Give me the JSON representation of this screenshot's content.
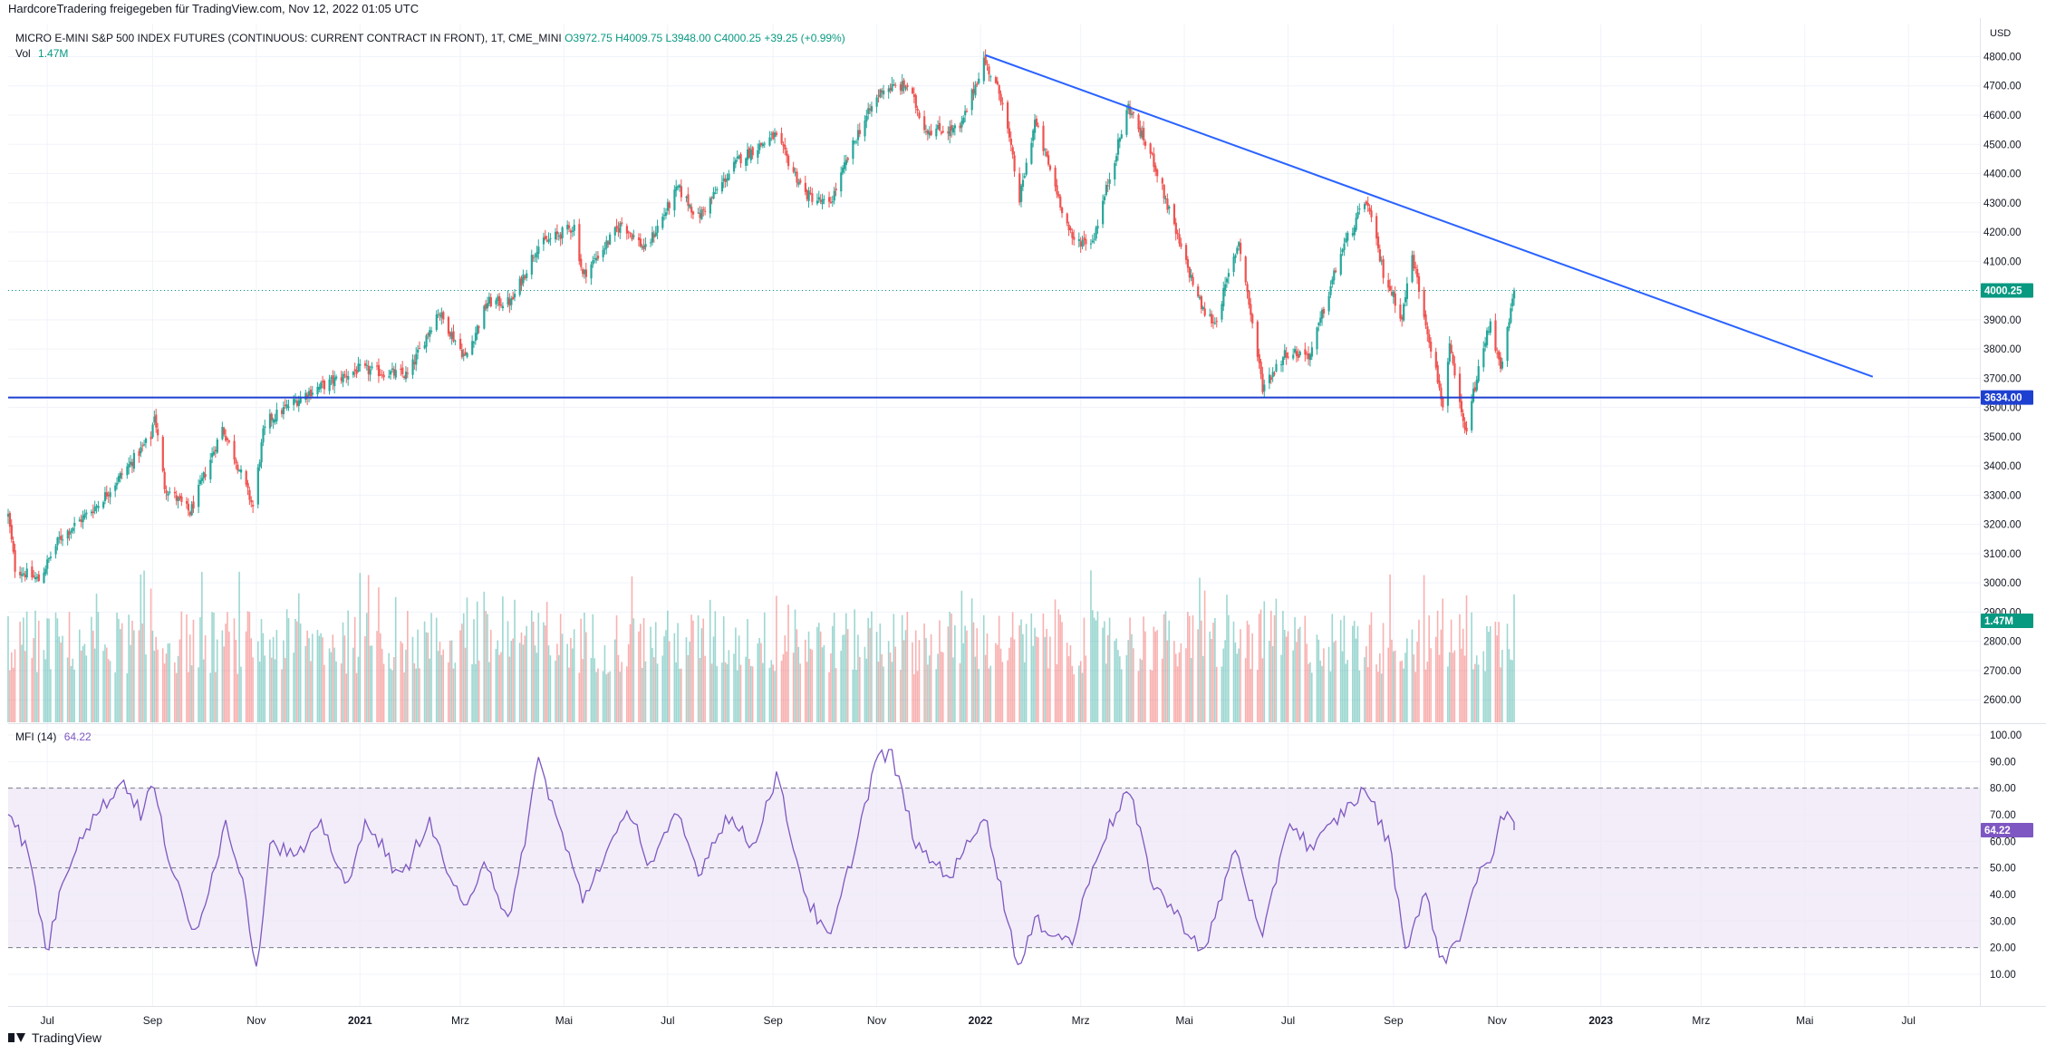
{
  "header": {
    "shared_by": "HardcoreTradering freigegeben für TradingView.com, Nov 12, 2022 01:05 UTC"
  },
  "legend": {
    "symbol": "MICRO E-MINI S&P 500 INDEX FUTURES (CONTINUOUS: CURRENT CONTRACT IN FRONT), 1T, CME_MINI",
    "open": "O3972.75",
    "high": "H4009.75",
    "low": "L3948.00",
    "close": "C4000.25",
    "change": "+39.25 (+0.99%)",
    "vol_label": "Vol",
    "vol_value": "1.47M",
    "mfi_label": "MFI (14)",
    "mfi_value": "64.22"
  },
  "footer": {
    "brand": "TradingView"
  },
  "colors": {
    "up": "#26a69a",
    "down": "#ef5350",
    "trendline": "#2962ff",
    "support": "#1e40d0",
    "mfi_line": "#7e57c2",
    "mfi_band": "#ede7f6",
    "last_price": "#089981",
    "support_label": "#1e40d0"
  },
  "chart_data": [
    {
      "type": "candlestick",
      "currency": "USD",
      "y_axis_label": "USD",
      "ylim": [
        2520,
        4910
      ],
      "y_ticks": [
        2600,
        2700,
        2800,
        2900,
        3000,
        3100,
        3200,
        3300,
        3400,
        3500,
        3600,
        3700,
        3800,
        3900,
        4000,
        4100,
        4200,
        4300,
        4400,
        4500,
        4600,
        4700,
        4800
      ],
      "x_range": [
        "2020-06-08",
        "2023-08-12"
      ],
      "x_ticks": [
        {
          "date": "2020-07-01",
          "label": "Jul",
          "bold": false
        },
        {
          "date": "2020-09-01",
          "label": "Sep",
          "bold": false
        },
        {
          "date": "2020-11-01",
          "label": "Nov",
          "bold": false
        },
        {
          "date": "2021-01-01",
          "label": "2021",
          "bold": true
        },
        {
          "date": "2021-03-01",
          "label": "Mrz",
          "bold": false
        },
        {
          "date": "2021-05-01",
          "label": "Mai",
          "bold": false
        },
        {
          "date": "2021-07-01",
          "label": "Jul",
          "bold": false
        },
        {
          "date": "2021-09-01",
          "label": "Sep",
          "bold": false
        },
        {
          "date": "2021-11-01",
          "label": "Nov",
          "bold": false
        },
        {
          "date": "2022-01-01",
          "label": "2022",
          "bold": true
        },
        {
          "date": "2022-03-01",
          "label": "Mrz",
          "bold": false
        },
        {
          "date": "2022-05-01",
          "label": "Mai",
          "bold": false
        },
        {
          "date": "2022-07-01",
          "label": "Jul",
          "bold": false
        },
        {
          "date": "2022-09-01",
          "label": "Sep",
          "bold": false
        },
        {
          "date": "2022-11-01",
          "label": "Nov",
          "bold": false
        },
        {
          "date": "2023-01-01",
          "label": "2023",
          "bold": true
        },
        {
          "date": "2023-03-01",
          "label": "Mrz",
          "bold": false
        },
        {
          "date": "2023-05-01",
          "label": "Mai",
          "bold": false
        },
        {
          "date": "2023-07-01",
          "label": "Jul",
          "bold": false
        }
      ],
      "series_close_path": [
        [
          "2020-06-08",
          3230
        ],
        [
          "2020-06-12",
          3050
        ],
        [
          "2020-06-26",
          3010
        ],
        [
          "2020-07-08",
          3150
        ],
        [
          "2020-07-31",
          3270
        ],
        [
          "2020-08-15",
          3380
        ],
        [
          "2020-08-31",
          3500
        ],
        [
          "2020-09-02",
          3580
        ],
        [
          "2020-09-08",
          3330
        ],
        [
          "2020-09-23",
          3240
        ],
        [
          "2020-10-12",
          3530
        ],
        [
          "2020-10-20",
          3420
        ],
        [
          "2020-10-30",
          3260
        ],
        [
          "2020-11-05",
          3510
        ],
        [
          "2020-11-09",
          3560
        ],
        [
          "2020-12-01",
          3650
        ],
        [
          "2020-12-31",
          3730
        ],
        [
          "2021-01-29",
          3710
        ],
        [
          "2021-02-16",
          3930
        ],
        [
          "2021-03-04",
          3770
        ],
        [
          "2021-03-17",
          3960
        ],
        [
          "2021-03-31",
          3960
        ],
        [
          "2021-04-15",
          4150
        ],
        [
          "2021-05-07",
          4220
        ],
        [
          "2021-05-12",
          4050
        ],
        [
          "2021-06-04",
          4230
        ],
        [
          "2021-06-18",
          4140
        ],
        [
          "2021-07-07",
          4350
        ],
        [
          "2021-07-19",
          4250
        ],
        [
          "2021-08-12",
          4450
        ],
        [
          "2021-09-02",
          4530
        ],
        [
          "2021-09-20",
          4330
        ],
        [
          "2021-10-04",
          4290
        ],
        [
          "2021-10-21",
          4540
        ],
        [
          "2021-11-04",
          4690
        ],
        [
          "2021-11-19",
          4700
        ],
        [
          "2021-11-30",
          4550
        ],
        [
          "2021-12-20",
          4550
        ],
        [
          "2022-01-03",
          4790
        ],
        [
          "2022-01-14",
          4650
        ],
        [
          "2022-01-24",
          4310
        ],
        [
          "2022-02-02",
          4580
        ],
        [
          "2022-02-24",
          4170
        ],
        [
          "2022-03-08",
          4170
        ],
        [
          "2022-03-29",
          4630
        ],
        [
          "2022-04-13",
          4440
        ],
        [
          "2022-04-29",
          4140
        ],
        [
          "2022-05-12",
          3930
        ],
        [
          "2022-05-19",
          3890
        ],
        [
          "2022-06-02",
          4170
        ],
        [
          "2022-06-16",
          3670
        ],
        [
          "2022-06-30",
          3790
        ],
        [
          "2022-07-14",
          3780
        ],
        [
          "2022-08-01",
          4130
        ],
        [
          "2022-08-16",
          4310
        ],
        [
          "2022-08-26",
          4060
        ],
        [
          "2022-09-06",
          3910
        ],
        [
          "2022-09-12",
          4120
        ],
        [
          "2022-09-30",
          3610
        ],
        [
          "2022-10-04",
          3800
        ],
        [
          "2022-10-13",
          3510
        ],
        [
          "2022-10-20",
          3700
        ],
        [
          "2022-10-28",
          3900
        ],
        [
          "2022-11-03",
          3720
        ],
        [
          "2022-11-10",
          3960
        ],
        [
          "2022-11-11",
          4000.25
        ]
      ],
      "last_price": 4000.25,
      "last_price_label": "4000.25",
      "support_level": 3634.0,
      "support_label": "3634.00",
      "trendline": {
        "start": [
          "2022-01-04",
          4805
        ],
        "end": [
          "2023-06-10",
          3705
        ]
      },
      "volume": {
        "last_value": "1.47M",
        "scale_max_m": 2.0
      }
    },
    {
      "type": "line",
      "name": "MFI (14)",
      "ylim": [
        0,
        100
      ],
      "y_ticks": [
        10,
        20,
        30,
        40,
        50,
        60,
        70,
        80,
        90,
        100
      ],
      "bands": {
        "upper": 80,
        "middle": 50,
        "lower": 20
      },
      "last_value": 64.22,
      "last_label": "64.22",
      "series": [
        [
          "2020-06-08",
          73
        ],
        [
          "2020-06-20",
          55
        ],
        [
          "2020-07-01",
          18
        ],
        [
          "2020-07-10",
          45
        ],
        [
          "2020-07-20",
          62
        ],
        [
          "2020-08-05",
          75
        ],
        [
          "2020-08-15",
          83
        ],
        [
          "2020-08-25",
          70
        ],
        [
          "2020-09-01",
          82
        ],
        [
          "2020-09-10",
          55
        ],
        [
          "2020-09-25",
          24
        ],
        [
          "2020-10-05",
          45
        ],
        [
          "2020-10-14",
          67
        ],
        [
          "2020-10-25",
          44
        ],
        [
          "2020-11-01",
          10
        ],
        [
          "2020-11-09",
          60
        ],
        [
          "2020-11-25",
          54
        ],
        [
          "2020-12-10",
          66
        ],
        [
          "2020-12-25",
          42
        ],
        [
          "2021-01-05",
          69
        ],
        [
          "2021-01-25",
          45
        ],
        [
          "2021-02-10",
          68
        ],
        [
          "2021-03-04",
          32
        ],
        [
          "2021-03-15",
          55
        ],
        [
          "2021-03-30",
          28
        ],
        [
          "2021-04-16",
          91
        ],
        [
          "2021-04-26",
          70
        ],
        [
          "2021-05-12",
          38
        ],
        [
          "2021-05-25",
          55
        ],
        [
          "2021-06-10",
          72
        ],
        [
          "2021-06-20",
          50
        ],
        [
          "2021-07-07",
          70
        ],
        [
          "2021-07-19",
          48
        ],
        [
          "2021-08-05",
          70
        ],
        [
          "2021-08-20",
          58
        ],
        [
          "2021-09-03",
          85
        ],
        [
          "2021-09-20",
          40
        ],
        [
          "2021-10-04",
          22
        ],
        [
          "2021-10-20",
          60
        ],
        [
          "2021-11-01",
          92
        ],
        [
          "2021-11-10",
          92
        ],
        [
          "2021-11-25",
          57
        ],
        [
          "2021-12-15",
          47
        ],
        [
          "2022-01-03",
          71
        ],
        [
          "2022-01-24",
          11
        ],
        [
          "2022-02-02",
          30
        ],
        [
          "2022-02-24",
          22
        ],
        [
          "2022-03-10",
          55
        ],
        [
          "2022-03-29",
          80
        ],
        [
          "2022-04-12",
          45
        ],
        [
          "2022-04-29",
          30
        ],
        [
          "2022-05-13",
          18
        ],
        [
          "2022-05-31",
          58
        ],
        [
          "2022-06-16",
          22
        ],
        [
          "2022-07-01",
          68
        ],
        [
          "2022-07-15",
          57
        ],
        [
          "2022-08-01",
          70
        ],
        [
          "2022-08-16",
          80
        ],
        [
          "2022-08-30",
          58
        ],
        [
          "2022-09-08",
          20
        ],
        [
          "2022-09-20",
          40
        ],
        [
          "2022-09-30",
          14
        ],
        [
          "2022-10-10",
          25
        ],
        [
          "2022-10-20",
          45
        ],
        [
          "2022-10-29",
          55
        ],
        [
          "2022-11-04",
          72
        ],
        [
          "2022-11-11",
          64.22
        ]
      ]
    }
  ]
}
